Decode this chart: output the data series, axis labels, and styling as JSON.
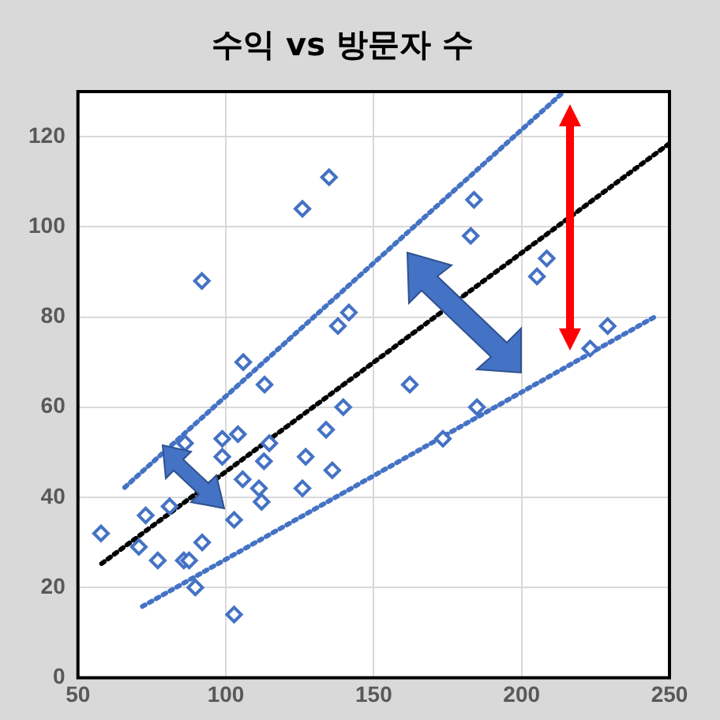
{
  "chart_data": {
    "type": "scatter",
    "title": "수익 vs 방문자 수",
    "marker": "diamond",
    "grid": true,
    "legend": false,
    "xlim": [
      50,
      250
    ],
    "xticks": [
      50,
      100,
      150,
      200,
      250
    ],
    "ylim": [
      0,
      130
    ],
    "yticks": [
      0,
      20,
      40,
      60,
      80,
      100,
      120
    ],
    "series": [
      {
        "color": "#4472c4",
        "x": [
          57.8,
          70.6,
          72.9,
          77,
          81,
          86.2,
          85.8,
          87.6,
          89.7,
          92,
          98.8,
          104.1,
          98.8,
          102.8,
          102.8,
          105.7,
          112.9,
          114.7,
          111.2,
          112.1,
          127,
          125.9,
          133.9,
          136,
          139.7,
          134.9,
          125.9,
          91.9,
          141.6,
          137.9,
          105.9,
          113.1,
          183.9,
          182.8,
          208.5,
          205.2,
          229.1,
          223.2,
          162.2,
          184.9,
          173.4
        ],
        "values": [
          32,
          29,
          36,
          26,
          38,
          52,
          26,
          26,
          20,
          30,
          53,
          54,
          49,
          35,
          14,
          44,
          48,
          52,
          42,
          39,
          49,
          42,
          55,
          46,
          60,
          111,
          104,
          88,
          81,
          78,
          70,
          65,
          106,
          98,
          93,
          89,
          78,
          73,
          65,
          60,
          53
        ]
      },
      {
        "type": "line",
        "marker": "none",
        "line_style": "dotted",
        "color": "#000000",
        "x": [
          58,
          250
        ],
        "values": [
          25.3,
          118.5
        ]
      },
      {
        "type": "line",
        "marker": "none",
        "line_style": "dotted",
        "color": "#4472c4",
        "x": [
          65.8,
          213.3
        ],
        "values": [
          42.2,
          129.4
        ]
      },
      {
        "type": "line",
        "marker": "none",
        "line_style": "dotted",
        "color": "#4472c4",
        "x": [
          71.8,
          245.2
        ],
        "values": [
          15.8,
          80.1
        ]
      }
    ]
  }
}
